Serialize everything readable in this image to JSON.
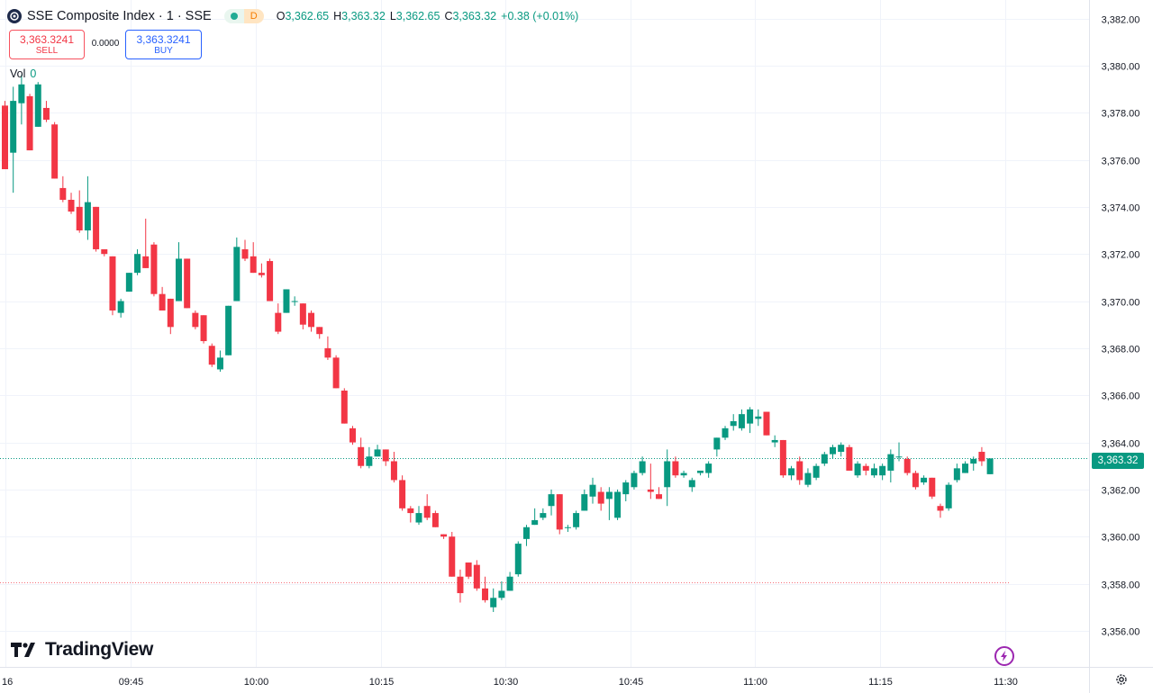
{
  "header": {
    "title": "SSE Composite Index · 1 · SSE",
    "status_letter": "D",
    "ohlc": {
      "o_label": "O",
      "o": "3,362.65",
      "h_label": "H",
      "h": "3,363.32",
      "l_label": "L",
      "l": "3,362.65",
      "c_label": "C",
      "c": "3,363.32",
      "change": "+0.38 (+0.01%)"
    }
  },
  "trade": {
    "sell_price": "3,363.3241",
    "sell_label": "SELL",
    "spread": "0.0000",
    "buy_price": "3,363.3241",
    "buy_label": "BUY"
  },
  "volume": {
    "label": "Vol",
    "value": "0"
  },
  "branding": {
    "name": "TradingView"
  },
  "current_price_label": "3,363.32",
  "colors": {
    "up": "#089981",
    "down": "#f23645",
    "grid": "#f0f3fa",
    "text": "#131722"
  },
  "icons": [
    "sse-logo-icon",
    "tradingview-logo-icon",
    "lightning-icon",
    "gear-icon"
  ],
  "chart_data": {
    "type": "candlestick",
    "y_ticks": [
      "3,382.00",
      "3,380.00",
      "3,378.00",
      "3,376.00",
      "3,374.00",
      "3,372.00",
      "3,370.00",
      "3,368.00",
      "3,366.00",
      "3,364.00",
      "3,362.00",
      "3,360.00",
      "3,358.00",
      "3,356.00"
    ],
    "ylim": [
      3355.5,
      3382.5
    ],
    "x_ticks": [
      "16",
      "09:45",
      "10:00",
      "10:15",
      "10:30",
      "10:45",
      "11:00",
      "11:15",
      "11:30"
    ],
    "current_price": 3363.32,
    "reference_line": 3358.05,
    "grid": true,
    "candles": [
      {
        "o": 3378.3,
        "h": 3378.5,
        "l": 3375.6,
        "c": 3375.6
      },
      {
        "o": 3376.3,
        "h": 3379.1,
        "l": 3374.6,
        "c": 3378.5
      },
      {
        "o": 3378.4,
        "h": 3379.6,
        "l": 3377.5,
        "c": 3379.2
      },
      {
        "o": 3378.7,
        "h": 3378.8,
        "l": 3376.4,
        "c": 3376.4
      },
      {
        "o": 3377.4,
        "h": 3379.3,
        "l": 3377.4,
        "c": 3379.2
      },
      {
        "o": 3378.2,
        "h": 3378.5,
        "l": 3377.6,
        "c": 3377.7
      },
      {
        "o": 3377.5,
        "h": 3377.6,
        "l": 3375.2,
        "c": 3375.2
      },
      {
        "o": 3374.8,
        "h": 3375.3,
        "l": 3374.2,
        "c": 3374.3
      },
      {
        "o": 3374.3,
        "h": 3374.6,
        "l": 3373.7,
        "c": 3373.8
      },
      {
        "o": 3374.0,
        "h": 3374.7,
        "l": 3372.9,
        "c": 3373.0
      },
      {
        "o": 3373.0,
        "h": 3375.3,
        "l": 3372.6,
        "c": 3374.2
      },
      {
        "o": 3374.0,
        "h": 3374.0,
        "l": 3372.1,
        "c": 3372.2
      },
      {
        "o": 3372.2,
        "h": 3372.2,
        "l": 3371.9,
        "c": 3372.0
      },
      {
        "o": 3371.9,
        "h": 3371.9,
        "l": 3369.4,
        "c": 3369.6
      },
      {
        "o": 3369.5,
        "h": 3370.1,
        "l": 3369.3,
        "c": 3370.0
      },
      {
        "o": 3370.4,
        "h": 3371.2,
        "l": 3370.4,
        "c": 3371.2
      },
      {
        "o": 3371.2,
        "h": 3372.2,
        "l": 3371.1,
        "c": 3372.0
      },
      {
        "o": 3371.9,
        "h": 3373.5,
        "l": 3371.4,
        "c": 3371.4
      },
      {
        "o": 3372.4,
        "h": 3372.5,
        "l": 3370.2,
        "c": 3370.3
      },
      {
        "o": 3370.3,
        "h": 3370.6,
        "l": 3369.6,
        "c": 3369.6
      },
      {
        "o": 3370.1,
        "h": 3370.1,
        "l": 3368.6,
        "c": 3368.9
      },
      {
        "o": 3370.0,
        "h": 3372.5,
        "l": 3370.0,
        "c": 3371.8
      },
      {
        "o": 3371.8,
        "h": 3371.8,
        "l": 3369.7,
        "c": 3369.7
      },
      {
        "o": 3369.5,
        "h": 3369.6,
        "l": 3368.8,
        "c": 3368.9
      },
      {
        "o": 3369.4,
        "h": 3369.4,
        "l": 3368.2,
        "c": 3368.3
      },
      {
        "o": 3368.1,
        "h": 3368.2,
        "l": 3367.2,
        "c": 3367.3
      },
      {
        "o": 3367.1,
        "h": 3367.9,
        "l": 3367.0,
        "c": 3367.6
      },
      {
        "o": 3367.7,
        "h": 3369.8,
        "l": 3367.7,
        "c": 3369.8
      },
      {
        "o": 3370.0,
        "h": 3372.7,
        "l": 3370.0,
        "c": 3372.3
      },
      {
        "o": 3372.2,
        "h": 3372.6,
        "l": 3371.7,
        "c": 3371.8
      },
      {
        "o": 3371.9,
        "h": 3372.5,
        "l": 3371.2,
        "c": 3371.2
      },
      {
        "o": 3371.2,
        "h": 3371.6,
        "l": 3371.0,
        "c": 3371.1
      },
      {
        "o": 3371.7,
        "h": 3371.8,
        "l": 3370.0,
        "c": 3370.0
      },
      {
        "o": 3369.5,
        "h": 3369.9,
        "l": 3368.6,
        "c": 3368.7
      },
      {
        "o": 3369.5,
        "h": 3370.5,
        "l": 3369.5,
        "c": 3370.5
      },
      {
        "o": 3370.0,
        "h": 3370.2,
        "l": 3369.8,
        "c": 3370.0
      },
      {
        "o": 3369.9,
        "h": 3369.9,
        "l": 3368.8,
        "c": 3369.0
      },
      {
        "o": 3369.5,
        "h": 3369.6,
        "l": 3368.7,
        "c": 3368.9
      },
      {
        "o": 3368.9,
        "h": 3368.9,
        "l": 3368.4,
        "c": 3368.6
      },
      {
        "o": 3368.0,
        "h": 3368.5,
        "l": 3367.5,
        "c": 3367.6
      },
      {
        "o": 3367.6,
        "h": 3367.7,
        "l": 3366.3,
        "c": 3366.3
      },
      {
        "o": 3366.2,
        "h": 3366.3,
        "l": 3364.8,
        "c": 3364.8
      },
      {
        "o": 3364.6,
        "h": 3364.7,
        "l": 3363.9,
        "c": 3364.0
      },
      {
        "o": 3363.8,
        "h": 3364.2,
        "l": 3362.9,
        "c": 3363.0
      },
      {
        "o": 3363.0,
        "h": 3363.8,
        "l": 3362.9,
        "c": 3363.4
      },
      {
        "o": 3363.4,
        "h": 3363.9,
        "l": 3363.4,
        "c": 3363.7
      },
      {
        "o": 3363.7,
        "h": 3363.7,
        "l": 3363.0,
        "c": 3363.2
      },
      {
        "o": 3363.2,
        "h": 3363.6,
        "l": 3362.3,
        "c": 3362.4
      },
      {
        "o": 3362.4,
        "h": 3362.6,
        "l": 3361.1,
        "c": 3361.2
      },
      {
        "o": 3361.2,
        "h": 3361.3,
        "l": 3360.6,
        "c": 3361.0
      },
      {
        "o": 3360.6,
        "h": 3361.3,
        "l": 3360.5,
        "c": 3361.0
      },
      {
        "o": 3361.3,
        "h": 3361.8,
        "l": 3360.7,
        "c": 3360.8
      },
      {
        "o": 3361.0,
        "h": 3361.1,
        "l": 3360.4,
        "c": 3360.4
      },
      {
        "o": 3360.1,
        "h": 3360.1,
        "l": 3359.9,
        "c": 3360.0
      },
      {
        "o": 3360.0,
        "h": 3360.2,
        "l": 3358.3,
        "c": 3358.3
      },
      {
        "o": 3358.3,
        "h": 3358.6,
        "l": 3357.2,
        "c": 3357.6
      },
      {
        "o": 3358.9,
        "h": 3358.9,
        "l": 3358.2,
        "c": 3358.3
      },
      {
        "o": 3358.8,
        "h": 3359.0,
        "l": 3357.7,
        "c": 3357.8
      },
      {
        "o": 3357.8,
        "h": 3358.3,
        "l": 3357.2,
        "c": 3357.3
      },
      {
        "o": 3357.0,
        "h": 3357.8,
        "l": 3356.8,
        "c": 3357.4
      },
      {
        "o": 3357.4,
        "h": 3358.1,
        "l": 3357.3,
        "c": 3357.7
      },
      {
        "o": 3357.7,
        "h": 3358.5,
        "l": 3357.7,
        "c": 3358.3
      },
      {
        "o": 3358.4,
        "h": 3359.8,
        "l": 3358.3,
        "c": 3359.7
      },
      {
        "o": 3359.9,
        "h": 3360.5,
        "l": 3359.6,
        "c": 3360.4
      },
      {
        "o": 3360.5,
        "h": 3361.2,
        "l": 3360.5,
        "c": 3360.7
      },
      {
        "o": 3360.8,
        "h": 3361.2,
        "l": 3360.7,
        "c": 3361.0
      },
      {
        "o": 3361.3,
        "h": 3362.0,
        "l": 3360.9,
        "c": 3361.8
      },
      {
        "o": 3361.8,
        "h": 3361.8,
        "l": 3360.1,
        "c": 3360.3
      },
      {
        "o": 3360.4,
        "h": 3360.5,
        "l": 3360.2,
        "c": 3360.4
      },
      {
        "o": 3360.4,
        "h": 3361.1,
        "l": 3360.3,
        "c": 3361.0
      },
      {
        "o": 3361.1,
        "h": 3362.0,
        "l": 3361.1,
        "c": 3361.8
      },
      {
        "o": 3361.7,
        "h": 3362.5,
        "l": 3361.4,
        "c": 3362.2
      },
      {
        "o": 3361.9,
        "h": 3362.1,
        "l": 3361.1,
        "c": 3361.4
      },
      {
        "o": 3361.6,
        "h": 3362.1,
        "l": 3360.7,
        "c": 3361.9
      },
      {
        "o": 3360.8,
        "h": 3362.0,
        "l": 3360.7,
        "c": 3361.9
      },
      {
        "o": 3361.8,
        "h": 3362.4,
        "l": 3361.5,
        "c": 3362.3
      },
      {
        "o": 3362.1,
        "h": 3362.8,
        "l": 3362.0,
        "c": 3362.7
      },
      {
        "o": 3362.7,
        "h": 3363.4,
        "l": 3362.6,
        "c": 3363.2
      },
      {
        "o": 3362.0,
        "h": 3363.1,
        "l": 3361.6,
        "c": 3361.9
      },
      {
        "o": 3361.8,
        "h": 3362.1,
        "l": 3361.6,
        "c": 3361.6
      },
      {
        "o": 3362.1,
        "h": 3363.7,
        "l": 3361.3,
        "c": 3363.2
      },
      {
        "o": 3363.2,
        "h": 3363.4,
        "l": 3362.5,
        "c": 3362.6
      },
      {
        "o": 3362.6,
        "h": 3362.8,
        "l": 3362.5,
        "c": 3362.7
      },
      {
        "o": 3362.1,
        "h": 3362.5,
        "l": 3361.9,
        "c": 3362.4
      },
      {
        "o": 3362.7,
        "h": 3362.8,
        "l": 3362.6,
        "c": 3362.8
      },
      {
        "o": 3362.7,
        "h": 3363.2,
        "l": 3362.5,
        "c": 3363.1
      },
      {
        "o": 3363.7,
        "h": 3364.2,
        "l": 3363.4,
        "c": 3364.2
      },
      {
        "o": 3364.2,
        "h": 3364.7,
        "l": 3364.1,
        "c": 3364.6
      },
      {
        "o": 3364.7,
        "h": 3365.2,
        "l": 3364.5,
        "c": 3364.9
      },
      {
        "o": 3364.6,
        "h": 3365.4,
        "l": 3364.5,
        "c": 3365.2
      },
      {
        "o": 3364.8,
        "h": 3365.5,
        "l": 3364.4,
        "c": 3365.4
      },
      {
        "o": 3365.0,
        "h": 3365.4,
        "l": 3364.7,
        "c": 3365.1
      },
      {
        "o": 3365.3,
        "h": 3365.3,
        "l": 3364.3,
        "c": 3364.3
      },
      {
        "o": 3364.0,
        "h": 3364.3,
        "l": 3363.8,
        "c": 3364.1
      },
      {
        "o": 3364.1,
        "h": 3364.1,
        "l": 3362.5,
        "c": 3362.6
      },
      {
        "o": 3362.6,
        "h": 3363.0,
        "l": 3362.4,
        "c": 3362.9
      },
      {
        "o": 3363.2,
        "h": 3363.4,
        "l": 3362.2,
        "c": 3362.4
      },
      {
        "o": 3362.2,
        "h": 3362.9,
        "l": 3362.1,
        "c": 3362.7
      },
      {
        "o": 3362.5,
        "h": 3363.1,
        "l": 3362.4,
        "c": 3363.0
      },
      {
        "o": 3363.1,
        "h": 3363.6,
        "l": 3363.0,
        "c": 3363.5
      },
      {
        "o": 3363.5,
        "h": 3363.9,
        "l": 3363.3,
        "c": 3363.8
      },
      {
        "o": 3363.6,
        "h": 3364.0,
        "l": 3363.4,
        "c": 3363.9
      },
      {
        "o": 3363.8,
        "h": 3363.9,
        "l": 3362.8,
        "c": 3362.8
      },
      {
        "o": 3362.6,
        "h": 3363.2,
        "l": 3362.5,
        "c": 3363.1
      },
      {
        "o": 3363.0,
        "h": 3363.1,
        "l": 3362.6,
        "c": 3362.8
      },
      {
        "o": 3362.6,
        "h": 3363.1,
        "l": 3362.5,
        "c": 3362.9
      },
      {
        "o": 3362.6,
        "h": 3363.1,
        "l": 3362.4,
        "c": 3363.0
      },
      {
        "o": 3362.8,
        "h": 3363.7,
        "l": 3362.3,
        "c": 3363.5
      },
      {
        "o": 3363.4,
        "h": 3364.0,
        "l": 3363.2,
        "c": 3363.4
      },
      {
        "o": 3363.3,
        "h": 3363.4,
        "l": 3362.6,
        "c": 3362.7
      },
      {
        "o": 3362.7,
        "h": 3362.8,
        "l": 3362.0,
        "c": 3362.1
      },
      {
        "o": 3362.3,
        "h": 3362.6,
        "l": 3362.2,
        "c": 3362.5
      },
      {
        "o": 3362.5,
        "h": 3362.5,
        "l": 3361.6,
        "c": 3361.7
      },
      {
        "o": 3361.3,
        "h": 3361.4,
        "l": 3360.8,
        "c": 3361.1
      },
      {
        "o": 3361.2,
        "h": 3362.3,
        "l": 3361.1,
        "c": 3362.2
      },
      {
        "o": 3362.4,
        "h": 3363.1,
        "l": 3362.3,
        "c": 3362.9
      },
      {
        "o": 3362.7,
        "h": 3363.2,
        "l": 3362.7,
        "c": 3363.1
      },
      {
        "o": 3363.1,
        "h": 3363.4,
        "l": 3362.8,
        "c": 3363.3
      },
      {
        "o": 3363.6,
        "h": 3363.8,
        "l": 3363.0,
        "c": 3363.2
      },
      {
        "o": 3362.65,
        "h": 3363.32,
        "l": 3362.65,
        "c": 3363.32
      }
    ]
  }
}
